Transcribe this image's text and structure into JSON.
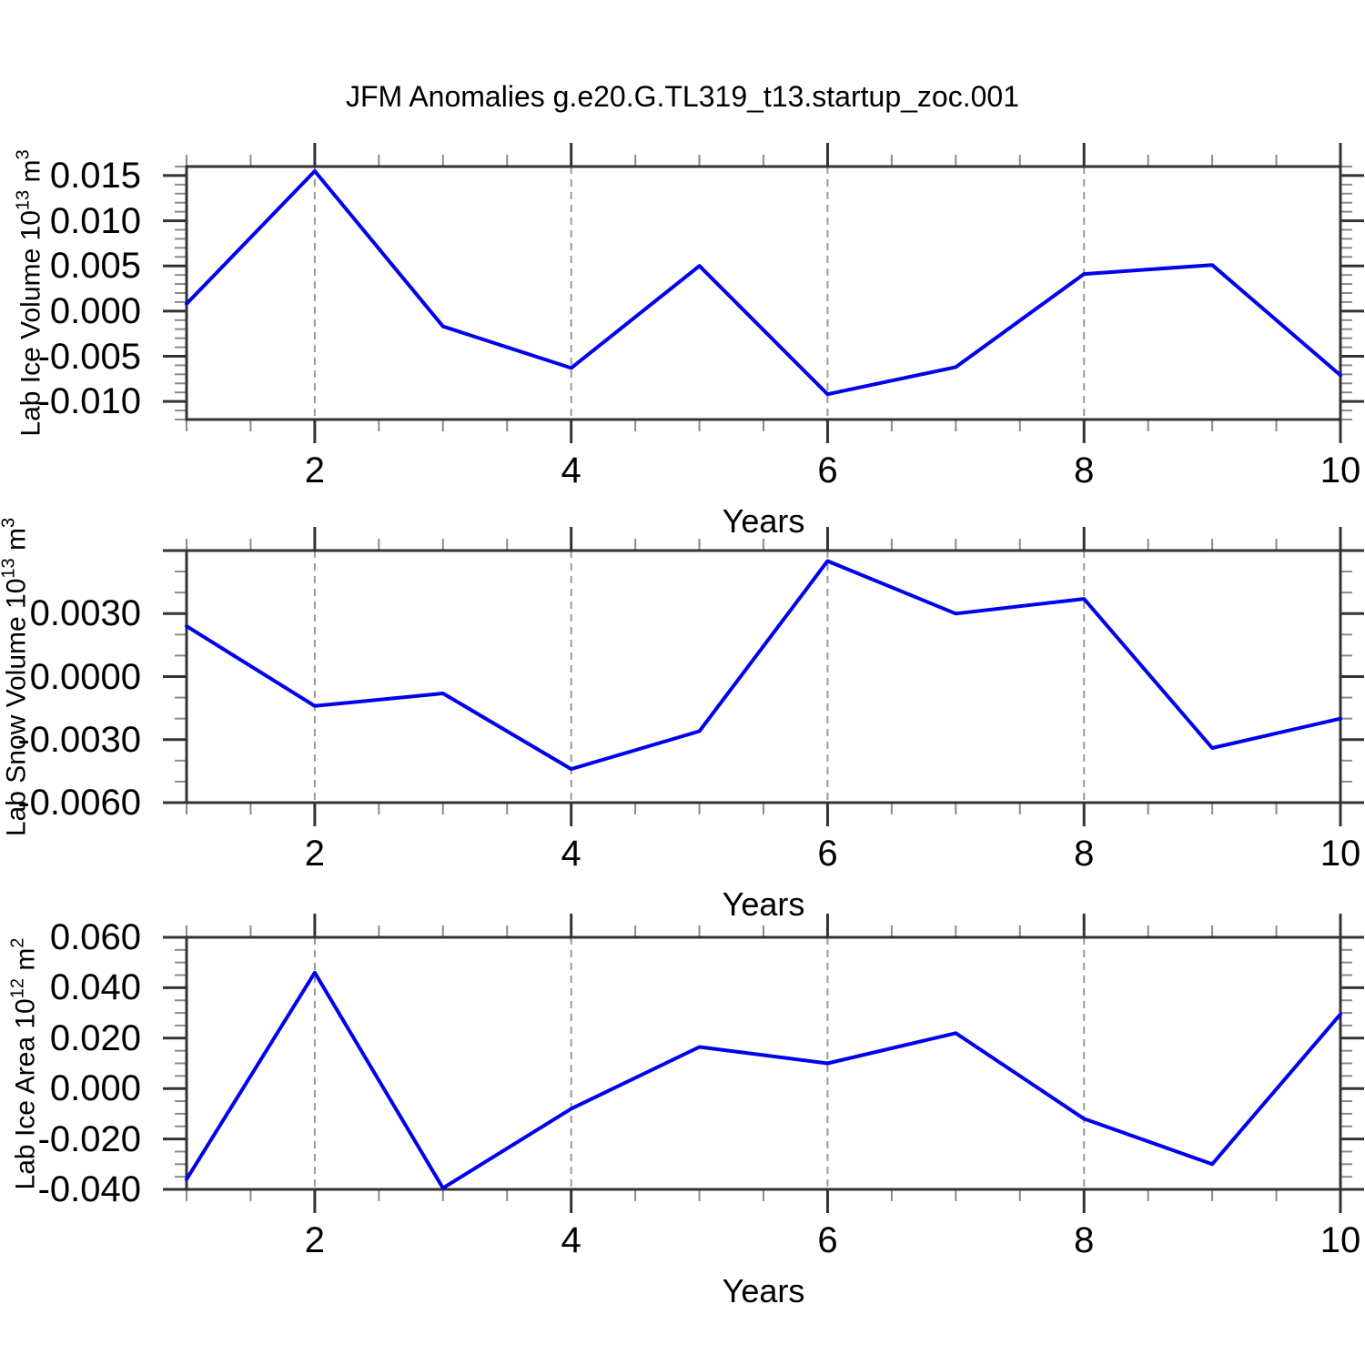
{
  "page_title": "JFM Anomalies g.e20.G.TL319_t13.startup_zoc.001",
  "colors": {
    "line": "#0000EE",
    "grid_dash": "#999999",
    "frame": "#333333",
    "major_tick": "#333333",
    "minor_tick": "#8a8a8a",
    "text": "#000000"
  },
  "x_axis": {
    "label": "Years",
    "range": [
      1,
      10
    ],
    "tick_labels": [
      "2",
      "4",
      "6",
      "8",
      "10"
    ],
    "tick_values": [
      2,
      4,
      6,
      8,
      10
    ],
    "minor_step": 0.5,
    "grid_years": [
      2,
      4,
      6,
      8
    ]
  },
  "chart_data": [
    {
      "type": "line",
      "ylabel_plain": "Lab Ice Volume 10^13 m^3",
      "title_parts": [
        {
          "t": "Lab Ice Volume 10"
        },
        {
          "t": "13",
          "sup": true
        },
        {
          "t": " m"
        },
        {
          "t": "3",
          "sup": true
        }
      ],
      "x": [
        1,
        2,
        3,
        4,
        5,
        6,
        7,
        8,
        9,
        10
      ],
      "values": [
        0.0008,
        0.0155,
        -0.0017,
        -0.0063,
        0.005,
        -0.0092,
        -0.0062,
        0.0041,
        0.0051,
        -0.0071
      ],
      "ylim": [
        -0.012,
        0.016
      ],
      "ytick_labels": [
        "0.015",
        "0.010",
        "0.005",
        "0.000",
        "-0.005",
        "-0.010"
      ],
      "ytick_values": [
        0.015,
        0.01,
        0.005,
        0,
        -0.005,
        -0.01
      ],
      "ymajor_step": 0.005,
      "yminor_step": 0.001
    },
    {
      "type": "line",
      "ylabel_plain": "Lab Snow Volume 10^13 m^3",
      "title_parts": [
        {
          "t": "Lab Snow Volume 10"
        },
        {
          "t": "13",
          "sup": true
        },
        {
          "t": " m"
        },
        {
          "t": "3",
          "sup": true
        }
      ],
      "x": [
        1,
        2,
        3,
        4,
        5,
        6,
        7,
        8,
        9,
        10
      ],
      "values": [
        0.0024,
        -0.0014,
        -0.0008,
        -0.0044,
        -0.0026,
        0.0055,
        0.003,
        0.0037,
        -0.0034,
        -0.002
      ],
      "ylim": [
        -0.006,
        0.006
      ],
      "ytick_labels": [
        "0.0030",
        "0.0000",
        "-0.0030",
        "-0.0060"
      ],
      "ytick_values": [
        0.003,
        0,
        -0.003,
        -0.006
      ],
      "ymajor_step": 0.003,
      "yminor_step": 0.001
    },
    {
      "type": "line",
      "ylabel_plain": "Lab Ice Area 10^12 m^2",
      "title_parts": [
        {
          "t": "Lab Ice Area 10"
        },
        {
          "t": "12",
          "sup": true
        },
        {
          "t": " m"
        },
        {
          "t": "2",
          "sup": true
        }
      ],
      "x": [
        1,
        2,
        3,
        4,
        5,
        6,
        7,
        8,
        9,
        10
      ],
      "values": [
        -0.036,
        0.046,
        -0.0395,
        -0.008,
        0.0165,
        0.01,
        0.022,
        -0.012,
        -0.03,
        0.0295
      ],
      "ylim": [
        -0.04,
        0.06
      ],
      "ytick_labels": [
        "0.060",
        "0.040",
        "0.020",
        "0.000",
        "-0.020",
        "-0.040"
      ],
      "ytick_values": [
        0.06,
        0.04,
        0.02,
        0,
        -0.02,
        -0.04
      ],
      "ymajor_step": 0.02,
      "yminor_step": 0.005
    }
  ]
}
